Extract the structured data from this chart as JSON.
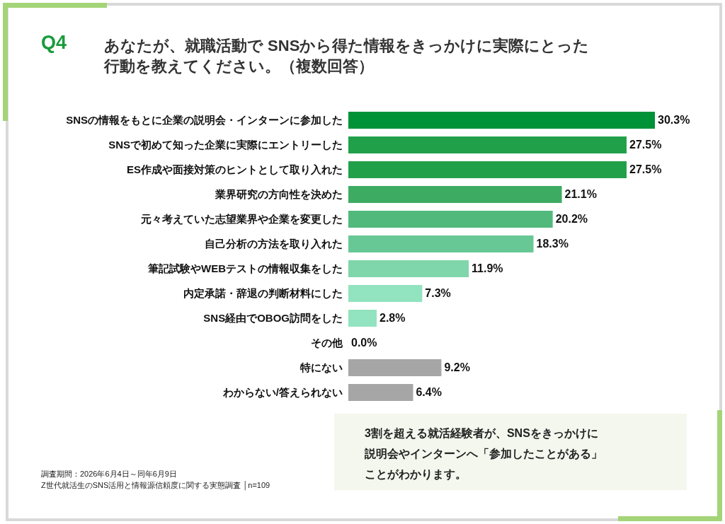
{
  "chart_data": {
    "type": "bar",
    "orientation": "horizontal",
    "title": "Q4",
    "subtitle": "あなたが、就職活動で SNSから得た情報をきっかけに実際にとった行動を教えてください。（複数回答）",
    "categories": [
      "SNSの情報をもとに企業の説明会・インターンに参加した",
      "SNSで初めて知った企業に実際にエントリーした",
      "ES作成や面接対策のヒントとして取り入れた",
      "業界研究の方向性を決めた",
      "元々考えていた志望業界や企業を変更した",
      "自己分析の方法を取り入れた",
      "筆記試験やWEBテストの情報収集をした",
      "内定承諾・辞退の判断材料にした",
      "SNS経由でOBOG訪問をした",
      "その他",
      "特にない",
      "わからない/答えられない"
    ],
    "values": [
      30.3,
      27.5,
      27.5,
      21.1,
      20.2,
      18.3,
      11.9,
      7.3,
      2.8,
      0.0,
      9.2,
      6.4
    ],
    "value_labels": [
      "30.3%",
      "27.5%",
      "27.5%",
      "21.1%",
      "20.2%",
      "18.3%",
      "11.9%",
      "7.3%",
      "2.8%",
      "0.0%",
      "9.2%",
      "6.4%"
    ],
    "colors": [
      "#009237",
      "#21a04a",
      "#21a04a",
      "#3eab63",
      "#52b97c",
      "#67c795",
      "#7fd6aa",
      "#92e3bf",
      "#92e3bf",
      "#92e3bf",
      "#a6a6a6",
      "#a6a6a6"
    ],
    "annotations": [
      "3割を超える就活経験者が、SNSをきっかけに説明会やインターンへ「参加したことがある」ことがわかります。",
      "調査期間：2026年6月4日～同年6月9日",
      "Z世代就活生のSNS活用と情報源信頼度に関する実態調査 │n=109"
    ]
  }
}
